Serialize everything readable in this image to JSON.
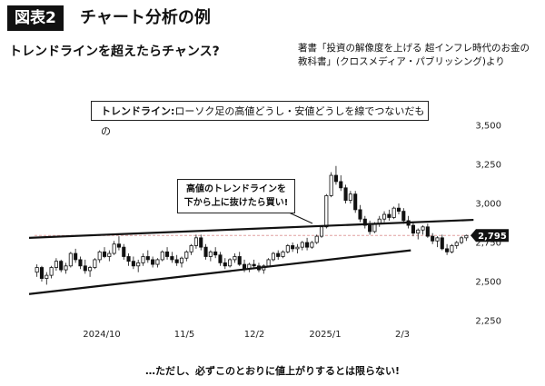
{
  "header": {
    "figure_label": "図表2",
    "figure_title": "チャート分析の例",
    "subtitle": "トレンドラインを超えたらチャンス?",
    "source": "著書「投資の解像度を上げる 超インフレ時代のお金の教科書」(クロスメディア・パブリッシング)より"
  },
  "notes": {
    "definition_term": "トレンドライン:",
    "definition_text": "ローソク足の高値どうし・安値どうしを線でつないだもの",
    "callout_line1": "高値のトレンドラインを",
    "callout_line2": "下から上に抜けたら買い!",
    "footer": "…ただし、必ずこのとおりに値上がりするとは限らない!"
  },
  "chart_data": {
    "type": "candlestick",
    "x_tick_labels": [
      "2024/10",
      "11/5",
      "12/2",
      "2025/1",
      "2/3"
    ],
    "y_ticks": [
      2250,
      2500,
      2750,
      3000,
      3250,
      3500
    ],
    "y_tick_labels": [
      "2,250",
      "2,500",
      "2,750",
      "3,000",
      "3,250",
      "3,500"
    ],
    "ylim": [
      2250,
      3500
    ],
    "last_value": 2795,
    "last_value_label": "2,795",
    "colors": {
      "up": "#ffffff",
      "down": "#111111",
      "line": "#111111",
      "ref_line": "#e0a0a0",
      "label_bg": "#111111"
    },
    "candles": [
      [
        2560,
        2610,
        2530,
        2590
      ],
      [
        2590,
        2600,
        2500,
        2520
      ],
      [
        2520,
        2560,
        2480,
        2540
      ],
      [
        2540,
        2600,
        2520,
        2590
      ],
      [
        2590,
        2650,
        2570,
        2630
      ],
      [
        2630,
        2640,
        2560,
        2575
      ],
      [
        2575,
        2620,
        2550,
        2600
      ],
      [
        2600,
        2690,
        2590,
        2680
      ],
      [
        2680,
        2710,
        2620,
        2640
      ],
      [
        2640,
        2660,
        2580,
        2600
      ],
      [
        2600,
        2640,
        2550,
        2570
      ],
      [
        2570,
        2600,
        2530,
        2590
      ],
      [
        2590,
        2650,
        2580,
        2640
      ],
      [
        2640,
        2700,
        2620,
        2690
      ],
      [
        2690,
        2720,
        2650,
        2660
      ],
      [
        2660,
        2700,
        2630,
        2680
      ],
      [
        2680,
        2760,
        2670,
        2740
      ],
      [
        2740,
        2790,
        2700,
        2720
      ],
      [
        2720,
        2740,
        2640,
        2660
      ],
      [
        2660,
        2680,
        2600,
        2630
      ],
      [
        2630,
        2660,
        2580,
        2600
      ],
      [
        2600,
        2640,
        2560,
        2620
      ],
      [
        2620,
        2680,
        2600,
        2660
      ],
      [
        2660,
        2700,
        2620,
        2640
      ],
      [
        2640,
        2660,
        2590,
        2610
      ],
      [
        2610,
        2650,
        2590,
        2640
      ],
      [
        2640,
        2700,
        2630,
        2690
      ],
      [
        2690,
        2720,
        2640,
        2660
      ],
      [
        2660,
        2690,
        2620,
        2640
      ],
      [
        2640,
        2670,
        2600,
        2620
      ],
      [
        2620,
        2660,
        2590,
        2650
      ],
      [
        2650,
        2700,
        2630,
        2690
      ],
      [
        2690,
        2740,
        2670,
        2730
      ],
      [
        2730,
        2800,
        2710,
        2780
      ],
      [
        2780,
        2800,
        2700,
        2720
      ],
      [
        2720,
        2740,
        2640,
        2660
      ],
      [
        2660,
        2700,
        2630,
        2690
      ],
      [
        2690,
        2720,
        2650,
        2670
      ],
      [
        2670,
        2690,
        2600,
        2620
      ],
      [
        2620,
        2650,
        2580,
        2600
      ],
      [
        2600,
        2650,
        2590,
        2640
      ],
      [
        2640,
        2680,
        2620,
        2660
      ],
      [
        2660,
        2690,
        2600,
        2610
      ],
      [
        2610,
        2640,
        2560,
        2580
      ],
      [
        2580,
        2620,
        2560,
        2610
      ],
      [
        2610,
        2640,
        2580,
        2600
      ],
      [
        2600,
        2620,
        2560,
        2575
      ],
      [
        2575,
        2610,
        2550,
        2600
      ],
      [
        2600,
        2650,
        2590,
        2640
      ],
      [
        2640,
        2690,
        2630,
        2680
      ],
      [
        2680,
        2700,
        2640,
        2660
      ],
      [
        2660,
        2700,
        2650,
        2690
      ],
      [
        2690,
        2740,
        2680,
        2730
      ],
      [
        2730,
        2750,
        2690,
        2710
      ],
      [
        2710,
        2740,
        2680,
        2720
      ],
      [
        2720,
        2760,
        2700,
        2750
      ],
      [
        2750,
        2780,
        2700,
        2720
      ],
      [
        2720,
        2760,
        2710,
        2750
      ],
      [
        2750,
        2800,
        2740,
        2790
      ],
      [
        2790,
        2860,
        2780,
        2850
      ],
      [
        2850,
        3060,
        2840,
        3050
      ],
      [
        3050,
        3200,
        3040,
        3180
      ],
      [
        3180,
        3240,
        3120,
        3140
      ],
      [
        3140,
        3180,
        3080,
        3100
      ],
      [
        3100,
        3120,
        3000,
        3020
      ],
      [
        3020,
        3080,
        3000,
        3060
      ],
      [
        3060,
        3080,
        2940,
        2960
      ],
      [
        2960,
        2990,
        2880,
        2900
      ],
      [
        2900,
        2920,
        2840,
        2860
      ],
      [
        2860,
        2890,
        2800,
        2820
      ],
      [
        2820,
        2880,
        2810,
        2870
      ],
      [
        2870,
        2920,
        2850,
        2900
      ],
      [
        2900,
        2950,
        2880,
        2930
      ],
      [
        2930,
        2960,
        2890,
        2910
      ],
      [
        2910,
        2980,
        2900,
        2970
      ],
      [
        2970,
        3000,
        2930,
        2950
      ],
      [
        2950,
        2970,
        2870,
        2890
      ],
      [
        2890,
        2920,
        2840,
        2860
      ],
      [
        2860,
        2880,
        2790,
        2810
      ],
      [
        2810,
        2840,
        2770,
        2830
      ],
      [
        2830,
        2860,
        2800,
        2850
      ],
      [
        2850,
        2870,
        2780,
        2790
      ],
      [
        2790,
        2810,
        2740,
        2760
      ],
      [
        2760,
        2790,
        2720,
        2780
      ],
      [
        2780,
        2800,
        2700,
        2710
      ],
      [
        2710,
        2740,
        2670,
        2690
      ],
      [
        2690,
        2740,
        2680,
        2730
      ],
      [
        2730,
        2760,
        2710,
        2750
      ],
      [
        2750,
        2790,
        2740,
        2780
      ],
      [
        2780,
        2800,
        2760,
        2795
      ]
    ],
    "trendlines": [
      {
        "from": [
          0,
          2780
        ],
        "to": [
          91,
          2895
        ]
      },
      {
        "from": [
          0,
          2420
        ],
        "to": [
          78,
          2700
        ]
      }
    ]
  }
}
